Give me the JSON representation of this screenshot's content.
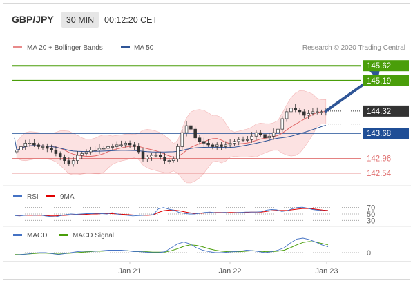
{
  "header": {
    "symbol": "GBP/JPY",
    "timeframe": "30 MIN",
    "time": "00:12:20 CET"
  },
  "legend": {
    "ma20_bb": "MA 20 + Bollinger Bands",
    "ma50": "MA 50",
    "research": "Research © 2020 Trading Central"
  },
  "colors": {
    "green_level": "#4a9e0a",
    "blue_level": "#1f4e96",
    "red_level": "#e07070",
    "last_price": "#333333",
    "bollinger": "#fbd8d8",
    "ma20": "#e06666",
    "ma50": "#2f5597",
    "rsi": "#4472c4",
    "rsi_ma": "#e00000",
    "macd": "#4472c4",
    "macd_signal": "#4a9e0a",
    "arrow": "#2f5597"
  },
  "chart_data": [
    {
      "type": "candlestick",
      "title": "GBP/JPY",
      "x_ticks": [
        "Jan 21",
        "Jan 22",
        "Jan 23"
      ],
      "y_range": [
        142.2,
        146.0
      ],
      "levels": [
        {
          "value": 145.62,
          "label": "145.62",
          "kind": "resistance"
        },
        {
          "value": 145.19,
          "label": "145.19",
          "kind": "resistance"
        },
        {
          "value": 144.32,
          "label": "144.32",
          "kind": "last"
        },
        {
          "value": 143.68,
          "label": "143.68",
          "kind": "pivot"
        },
        {
          "value": 142.96,
          "label": "142.96",
          "kind": "support"
        },
        {
          "value": 142.54,
          "label": "142.54",
          "kind": "support"
        }
      ],
      "series": [
        {
          "name": "MA 20 + Bollinger Bands"
        },
        {
          "name": "MA 50"
        }
      ],
      "projection": {
        "from": [
          71,
          144.32
        ],
        "to": [
          79,
          145.5
        ]
      },
      "ohlc_close_approx": [
        143.2,
        143.3,
        143.4,
        143.4,
        143.35,
        143.3,
        143.3,
        143.25,
        143.2,
        143.1,
        143.0,
        142.9,
        142.8,
        142.9,
        143.05,
        143.1,
        143.15,
        143.2,
        143.2,
        143.25,
        143.25,
        143.3,
        143.3,
        143.35,
        143.35,
        143.4,
        143.35,
        143.3,
        143.15,
        142.95,
        143.0,
        143.05,
        143.05,
        143.0,
        142.9,
        142.9,
        142.95,
        143.3,
        143.7,
        143.9,
        143.8,
        143.55,
        143.45,
        143.4,
        143.35,
        143.3,
        143.35,
        143.3,
        143.35,
        143.4,
        143.45,
        143.5,
        143.5,
        143.5,
        143.6,
        143.7,
        143.65,
        143.55,
        143.6,
        143.7,
        143.8,
        144.1,
        144.3,
        144.4,
        144.35,
        144.3,
        144.2,
        144.25,
        144.3,
        144.3,
        144.3,
        144.32
      ]
    },
    {
      "type": "line",
      "title": "RSI",
      "series": [
        {
          "name": "RSI"
        },
        {
          "name": "9MA"
        }
      ],
      "y_ticks": [
        "70",
        "50",
        "30"
      ],
      "y_range": [
        20,
        80
      ],
      "values_rsi": [
        45,
        44,
        46,
        47,
        46,
        47,
        44,
        42,
        41,
        45,
        48,
        50,
        49,
        50,
        51,
        51,
        52,
        51,
        50,
        54,
        50,
        47,
        46,
        44,
        45,
        46,
        47,
        48,
        66,
        70,
        65,
        62,
        55,
        52,
        50,
        50,
        52,
        55,
        56,
        54,
        54,
        55,
        53,
        54,
        55,
        56,
        56,
        56,
        57,
        62,
        64,
        63,
        58,
        60,
        66,
        70,
        71,
        68,
        64,
        62,
        60,
        60
      ],
      "values_ma": [
        46,
        46,
        46,
        46,
        46,
        46,
        45,
        44,
        44,
        45,
        46,
        47,
        48,
        48,
        49,
        50,
        50,
        51,
        51,
        51,
        50,
        49,
        48,
        47,
        46,
        46,
        46,
        47,
        55,
        60,
        62,
        62,
        60,
        57,
        54,
        52,
        52,
        53,
        54,
        55,
        55,
        55,
        55,
        55,
        55,
        55,
        56,
        56,
        56,
        58,
        60,
        61,
        61,
        61,
        63,
        65,
        67,
        67,
        66,
        64,
        62,
        61
      ]
    },
    {
      "type": "line",
      "title": "MACD",
      "series": [
        {
          "name": "MACD"
        },
        {
          "name": "MACD Signal"
        }
      ],
      "y_ticks": [
        "0"
      ],
      "values_macd": [
        -0.05,
        -0.04,
        -0.03,
        -0.01,
        0.0,
        0.0,
        -0.02,
        -0.04,
        -0.02,
        0.0,
        0.02,
        0.03,
        0.03,
        0.03,
        0.04,
        0.05,
        0.05,
        0.05,
        0.04,
        0.02,
        0.02,
        0.01,
        0.0,
        0.0,
        0.02,
        0.1,
        0.18,
        0.22,
        0.18,
        0.1,
        0.05,
        0.02,
        0.0,
        0.0,
        0.01,
        0.02,
        0.03,
        0.05,
        0.04,
        0.02,
        0.0,
        0.02,
        0.05,
        0.1,
        0.2,
        0.28,
        0.3,
        0.27,
        0.22,
        0.16,
        0.12
      ],
      "values_signal": [
        -0.04,
        -0.04,
        -0.03,
        -0.02,
        -0.01,
        -0.01,
        -0.02,
        -0.03,
        -0.02,
        -0.01,
        0.0,
        0.01,
        0.02,
        0.03,
        0.03,
        0.04,
        0.04,
        0.04,
        0.04,
        0.03,
        0.02,
        0.02,
        0.01,
        0.01,
        0.01,
        0.04,
        0.08,
        0.13,
        0.16,
        0.15,
        0.12,
        0.08,
        0.05,
        0.03,
        0.02,
        0.02,
        0.02,
        0.03,
        0.04,
        0.03,
        0.02,
        0.02,
        0.03,
        0.05,
        0.1,
        0.16,
        0.21,
        0.23,
        0.22,
        0.19,
        0.16
      ]
    }
  ]
}
